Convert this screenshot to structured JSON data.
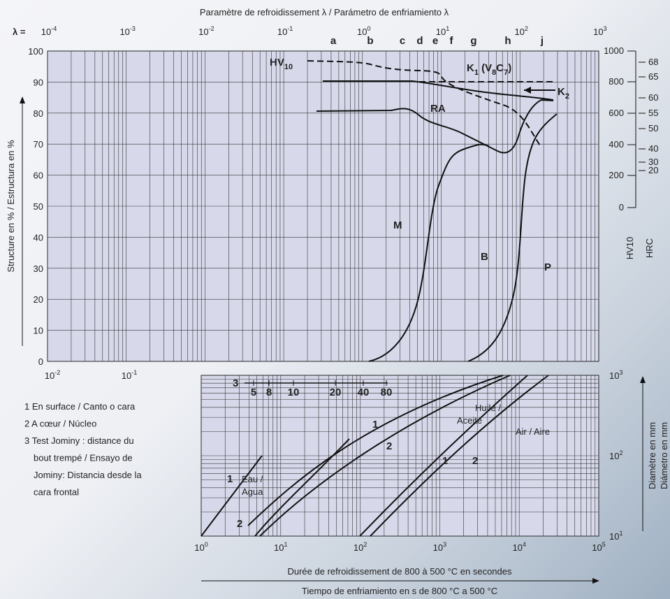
{
  "header": {
    "title": "Paramètre de refroidissement λ / Parámetro de enfriamiento λ",
    "lambda_label": "λ ="
  },
  "top_axis": {
    "ticks": [
      {
        "base": "10",
        "exp": "-4"
      },
      {
        "base": "10",
        "exp": "-3"
      },
      {
        "base": "10",
        "exp": "-2"
      },
      {
        "base": "10",
        "exp": "-1"
      },
      {
        "base": "10",
        "exp": "0"
      },
      {
        "base": "10",
        "exp": "1"
      },
      {
        "base": "10",
        "exp": "2"
      },
      {
        "base": "10",
        "exp": "3"
      }
    ],
    "letters": [
      "a",
      "b",
      "c",
      "d",
      "e",
      "f",
      "g",
      "h",
      "j"
    ]
  },
  "upper": {
    "y_label": "Structure en % / Estructura en %",
    "yticks": [
      "100",
      "90",
      "80",
      "70",
      "60",
      "50",
      "40",
      "30",
      "20",
      "10",
      "0"
    ],
    "xticks": [
      {
        "base": "10",
        "exp": "-2"
      },
      {
        "base": "10",
        "exp": "-1"
      }
    ],
    "hv_ticks": [
      "1000",
      "800",
      "600",
      "400",
      "200",
      "0"
    ],
    "hrc_ticks": [
      "68",
      "65",
      "60",
      "55",
      "50",
      "40",
      "30",
      "20"
    ],
    "hv_label": "HV10",
    "hrc_label": "HRC",
    "curve_labels": {
      "hv10": [
        "HV",
        "10"
      ],
      "k1": [
        "K",
        "1",
        " (V",
        "8",
        "C",
        "7",
        ")"
      ],
      "k2": [
        "K",
        "2"
      ],
      "ra": "RA",
      "m": "M",
      "b": "B",
      "p": "P"
    }
  },
  "legend": [
    "1 En surface / Canto o cara",
    "2 A cœur / Núcleo",
    "3 Test Jominy : distance du",
    "bout trempé / Ensayo de",
    "Jominy: Distancia desde la",
    "cara frontal"
  ],
  "lower": {
    "jominy": {
      "id": "3",
      "ticks": [
        "5",
        "8",
        "10",
        "20",
        "40",
        "80"
      ]
    },
    "xticks": [
      {
        "base": "10",
        "exp": "0"
      },
      {
        "base": "10",
        "exp": "1"
      },
      {
        "base": "10",
        "exp": "2"
      },
      {
        "base": "10",
        "exp": "3"
      },
      {
        "base": "10",
        "exp": "4"
      },
      {
        "base": "10",
        "exp": "5"
      }
    ],
    "yticks": [
      {
        "base": "10",
        "exp": "3"
      },
      {
        "base": "10",
        "exp": "2"
      },
      {
        "base": "10",
        "exp": "1"
      }
    ],
    "y_label_fr": "Diamètre en mm",
    "y_label_es": "Diámetro en mm",
    "x_label_fr": "Durée de refroidissement de 800 à 500 °C en secondes",
    "x_label_es": "Tiempo de enfriamiento en s de 800 °C a 500 °C",
    "curve_labels": {
      "oil1": "1",
      "oil2": "2",
      "huile": "Huile /",
      "aceite": "Aceite",
      "air": "Air / Aire",
      "air1": "1",
      "air2": "2",
      "water1": "1",
      "eau": "Eau /",
      "agua": "Agua",
      "water2": "2"
    }
  }
}
